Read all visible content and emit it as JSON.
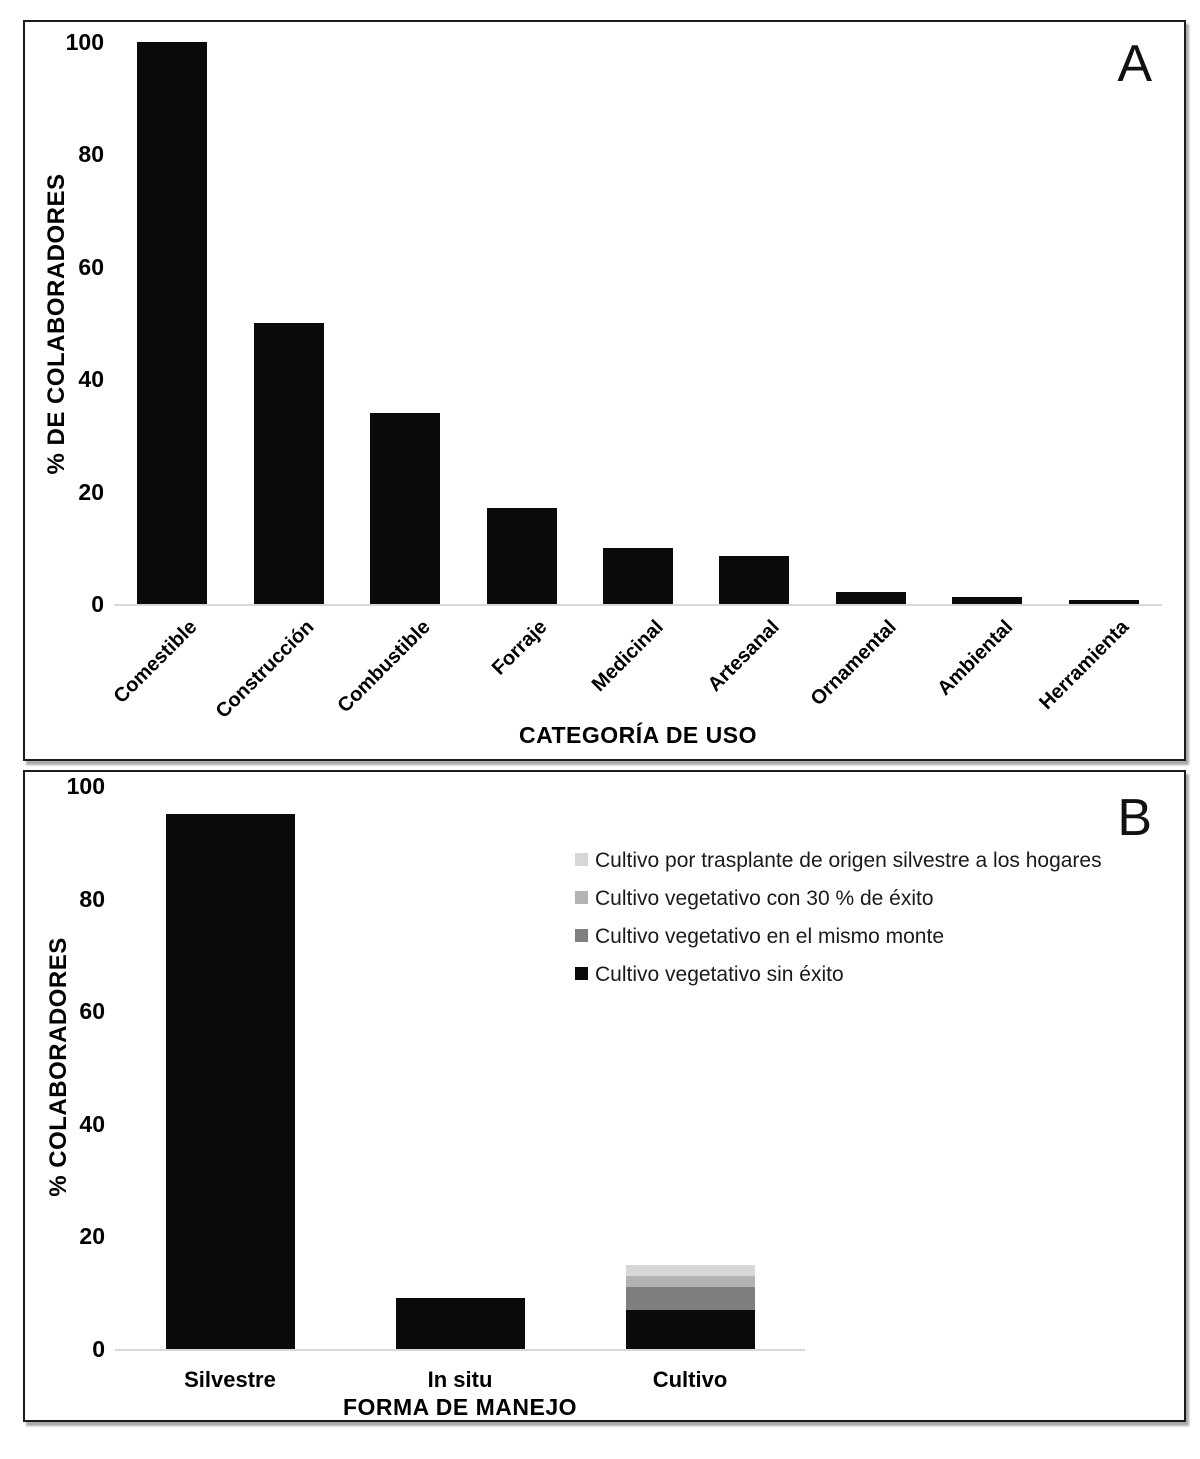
{
  "figure": {
    "background": "#ffffff",
    "panel_border_color": "#1c1c1c",
    "bar_black": "#0a0a0a",
    "axis_line_color": "#d9d9d9"
  },
  "chart_data": [
    {
      "type": "bar",
      "panel_label": "A",
      "title": "",
      "categories": [
        "Comestible",
        "Construcción",
        "Combustible",
        "Forraje",
        "Medicinal",
        "Artesanal",
        "Ornamental",
        "Ambiental",
        "Herramienta"
      ],
      "values": [
        100,
        50,
        34,
        17,
        10,
        8.5,
        2.2,
        1.3,
        0.7
      ],
      "bar_color": "#0a0a0a",
      "xlabel": "CATEGORÍA DE USO",
      "ylabel": "% DE COLABORADORES",
      "ylim": [
        0,
        100
      ],
      "yticks": [
        0,
        20,
        40,
        60,
        80,
        100
      ],
      "grid": false,
      "legend": null
    },
    {
      "type": "stacked-bar",
      "panel_label": "B",
      "title": "",
      "categories": [
        "Silvestre",
        "In situ",
        "Cultivo"
      ],
      "segment_order": "bottom to top",
      "bars": [
        {
          "category": "Silvestre",
          "segments": [
            {
              "label": "Cultivo vegetativo sin éxito",
              "value": 95
            }
          ]
        },
        {
          "category": "In situ",
          "segments": [
            {
              "label": "Cultivo vegetativo sin éxito",
              "value": 9
            }
          ]
        },
        {
          "category": "Cultivo",
          "segments": [
            {
              "label": "Cultivo vegetativo sin éxito",
              "value": 7
            },
            {
              "label": "Cultivo vegetativo en el mismo monte",
              "value": 4
            },
            {
              "label": "Cultivo vegetativo con 30 % de éxito",
              "value": 2
            },
            {
              "label": "Cultivo por trasplante de origen silvestre a los hogares",
              "value": 2
            }
          ]
        }
      ],
      "series_colors": {
        "Cultivo vegetativo sin éxito": "#0a0a0a",
        "Cultivo vegetativo en el mismo monte": "#7f7f7f",
        "Cultivo vegetativo con 30 % de éxito": "#b3b3b3",
        "Cultivo por trasplante de origen silvestre a los hogares": "#d7d7d7"
      },
      "legend": {
        "position": "upper right",
        "entries": [
          {
            "label": "Cultivo por trasplante de origen silvestre a los hogares",
            "color": "#d7d7d7"
          },
          {
            "label": "Cultivo vegetativo con 30 % de éxito",
            "color": "#b3b3b3"
          },
          {
            "label": "Cultivo vegetativo en el mismo monte",
            "color": "#7f7f7f"
          },
          {
            "label": "Cultivo vegetativo sin éxito",
            "color": "#0a0a0a"
          }
        ]
      },
      "xlabel": "FORMA DE MANEJO",
      "ylabel": "% COLABORADORES",
      "ylim": [
        0,
        100
      ],
      "yticks": [
        0,
        20,
        40,
        60,
        80,
        100
      ],
      "grid": false
    }
  ]
}
